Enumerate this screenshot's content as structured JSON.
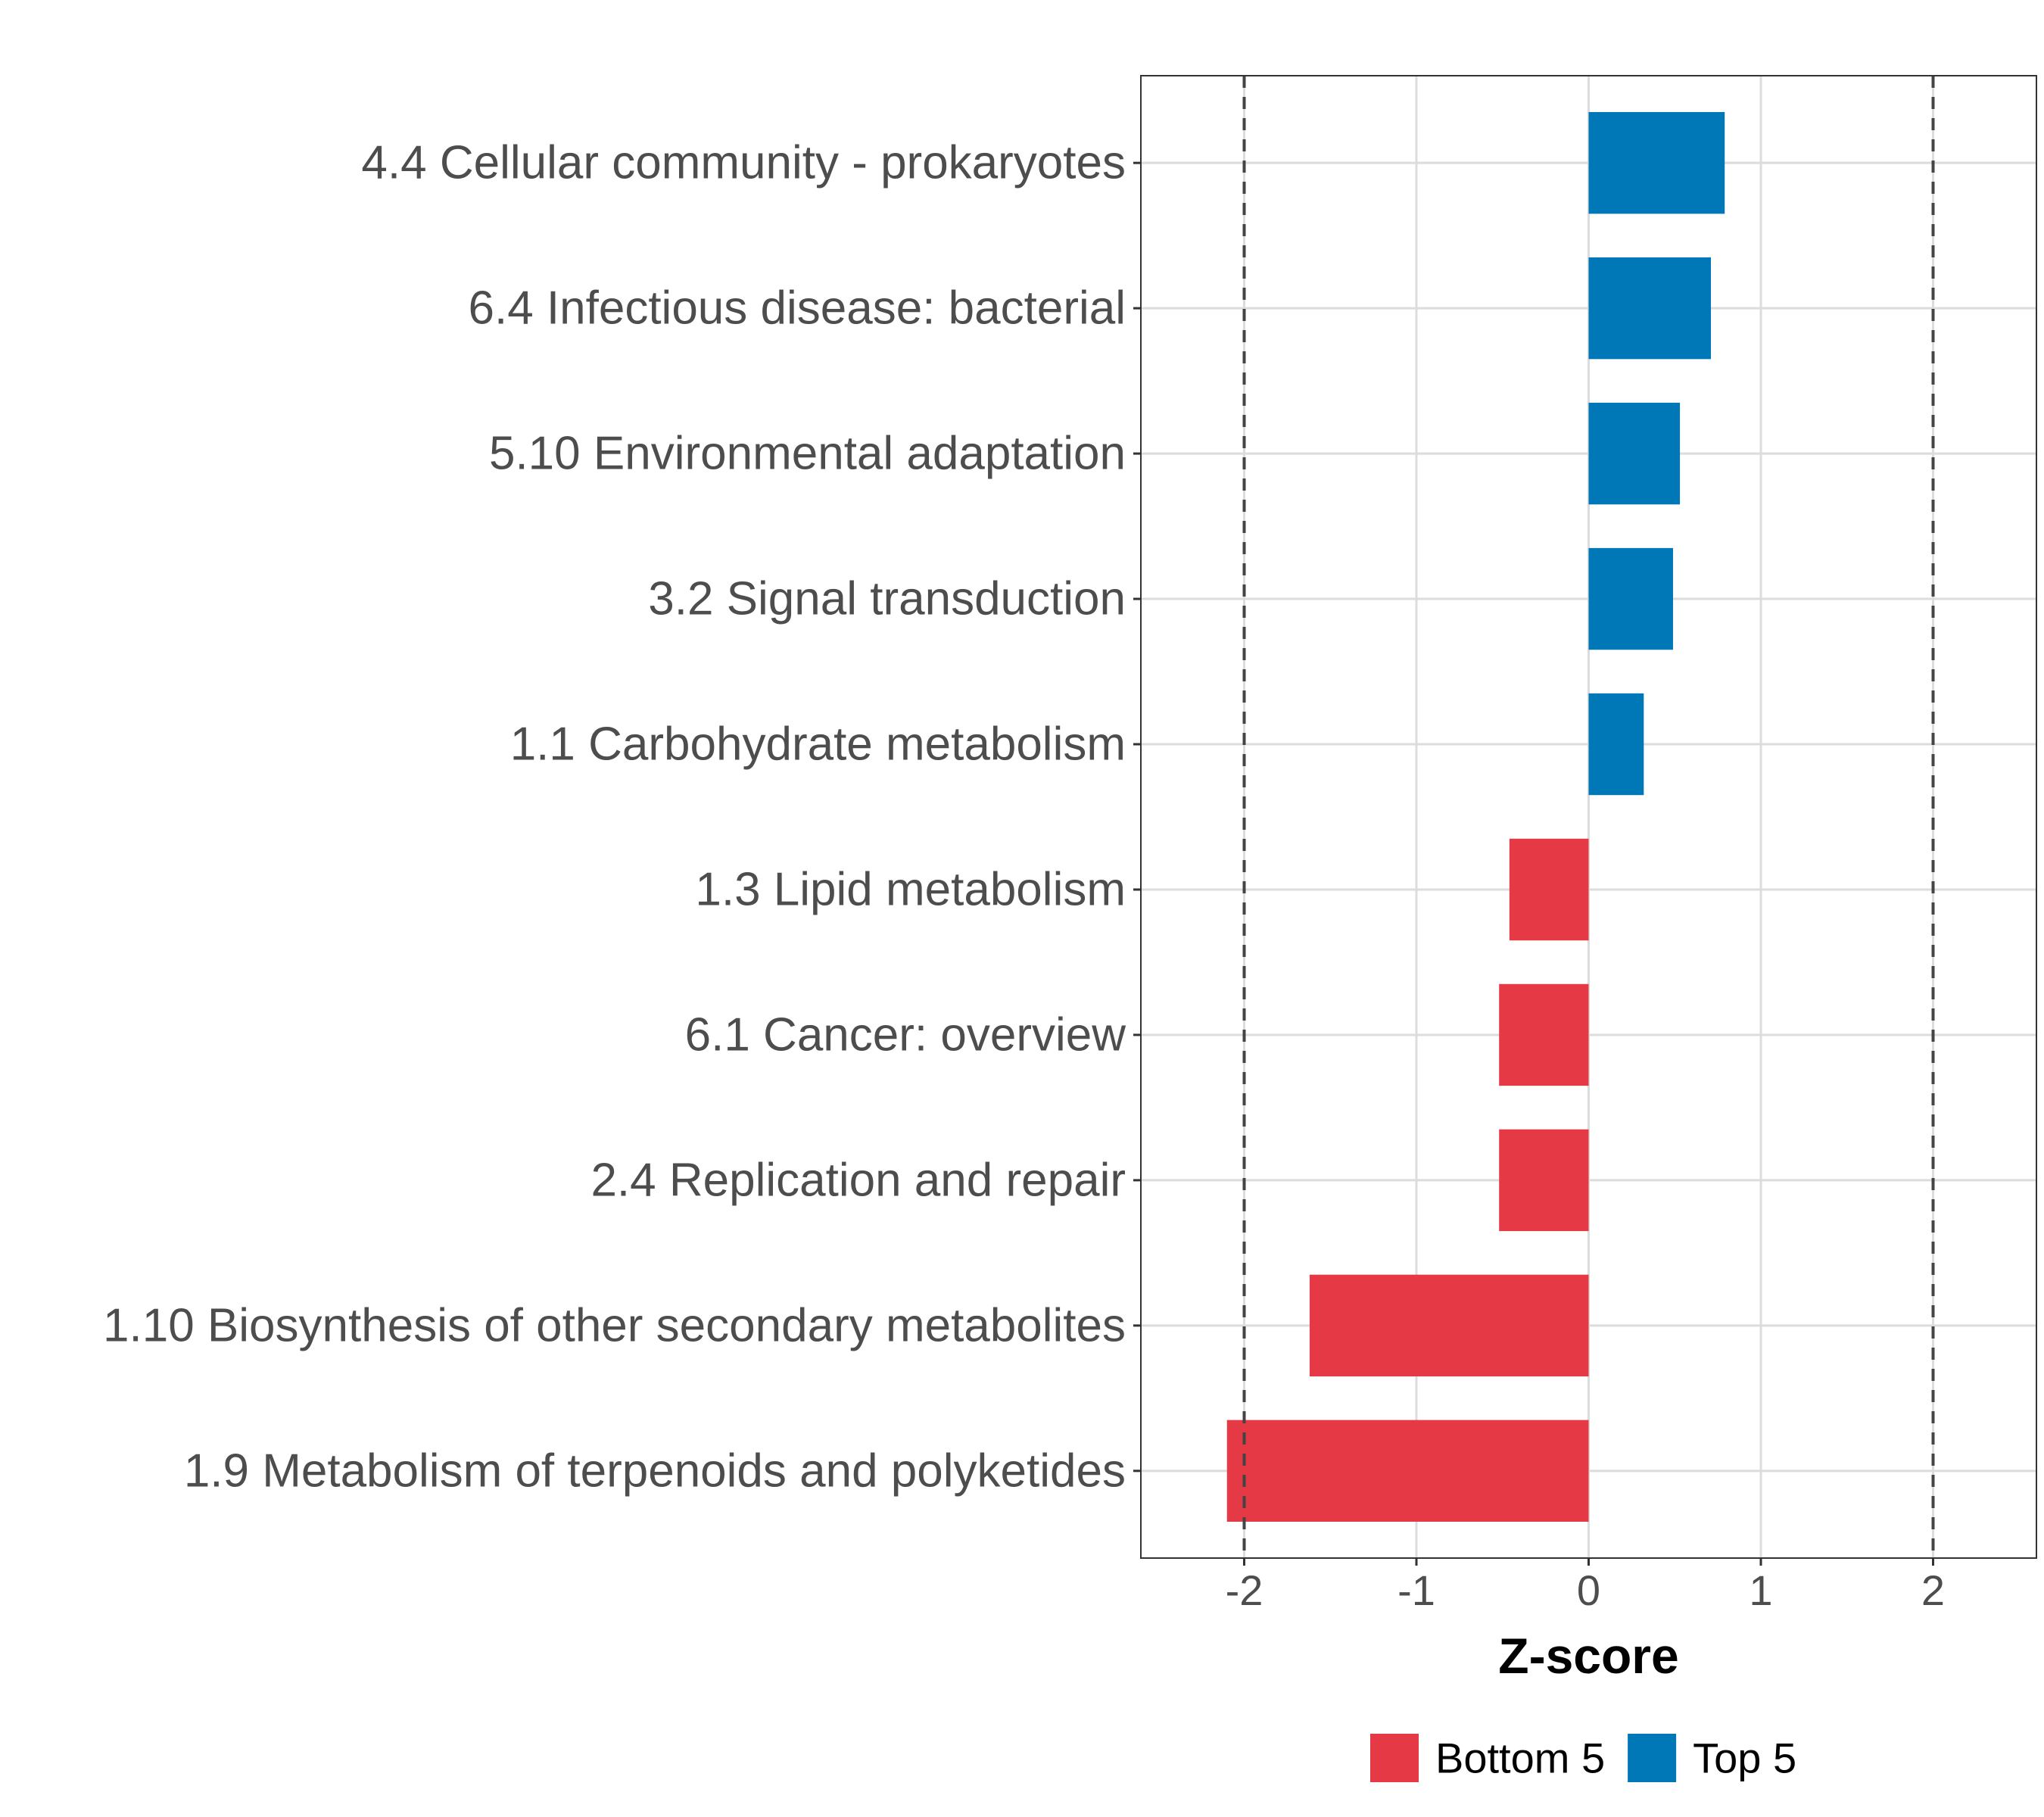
{
  "chart_data": {
    "type": "bar",
    "orientation": "horizontal",
    "title": "",
    "xlabel": "Z-score",
    "ylabel": "",
    "xlim": [
      -2.6,
      2.6
    ],
    "xticks": [
      -2,
      -1,
      0,
      1,
      2
    ],
    "xtick_labels": [
      "-2",
      "-1",
      "0",
      "1",
      "2"
    ],
    "reference_lines": [
      -2,
      2
    ],
    "grid": true,
    "legend_position": "bottom",
    "categories": [
      "4.4 Cellular community - prokaryotes",
      "6.4 Infectious disease: bacterial",
      "5.10 Environmental adaptation",
      "3.2 Signal transduction",
      "1.1 Carbohydrate metabolism",
      "1.3 Lipid metabolism",
      "6.1 Cancer: overview",
      "2.4 Replication and repair",
      "1.10 Biosynthesis of other secondary metabolites",
      "1.9 Metabolism of terpenoids and polyketides"
    ],
    "values": [
      0.79,
      0.71,
      0.53,
      0.49,
      0.32,
      -0.46,
      -0.52,
      -0.52,
      -1.62,
      -2.1
    ],
    "groups": [
      "Top 5",
      "Top 5",
      "Top 5",
      "Top 5",
      "Top 5",
      "Bottom 5",
      "Bottom 5",
      "Bottom 5",
      "Bottom 5",
      "Bottom 5"
    ],
    "legend": [
      {
        "name": "Bottom 5",
        "color": "#E63946"
      },
      {
        "name": "Top 5",
        "color": "#0077B6"
      }
    ]
  }
}
